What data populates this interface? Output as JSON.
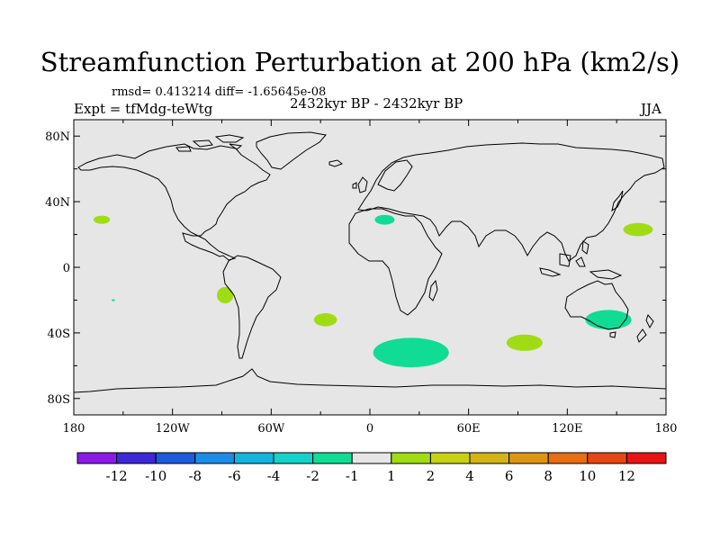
{
  "title": "Streamfunction Perturbation at 200 hPa (km2/s)",
  "stats": "rmsd= 0.413214 diff= -1.65645e-08",
  "experiment": "Expt = tfMdg-teWtg",
  "period": "2432kyr BP - 2432kyr BP",
  "season": "JJA",
  "colors": {
    "ocean_background": "#e6e6e6",
    "coastline": "#000000"
  },
  "axes": {
    "lat_labels": [
      "80N",
      "40N",
      "0",
      "40S",
      "80S"
    ],
    "lon_labels": [
      "180",
      "120W",
      "60W",
      "0",
      "60E",
      "120E",
      "180"
    ]
  },
  "colorbar": {
    "colors": [
      "#8a1ae6",
      "#3c28d6",
      "#1e5adc",
      "#1e8ce6",
      "#14b4dc",
      "#14d2c8",
      "#10dc96",
      "#e6e6e6",
      "#a0dc14",
      "#c8d214",
      "#d2b414",
      "#dc9614",
      "#e66e14",
      "#e64614",
      "#e61414"
    ],
    "labels": [
      "-12",
      "-10",
      "-8",
      "-6",
      "-4",
      "-2",
      "-1",
      "1",
      "2",
      "4",
      "6",
      "8",
      "10",
      "12"
    ]
  },
  "anomalies": [
    {
      "lon": -163,
      "lat": 29,
      "rlon": 5,
      "rlat": 2.5,
      "color": "#a0dc14"
    },
    {
      "lon": 9,
      "lat": 29,
      "rlon": 6,
      "rlat": 3,
      "color": "#10dc96"
    },
    {
      "lon": 163,
      "lat": 23,
      "rlon": 9,
      "rlat": 4,
      "color": "#a0dc14"
    },
    {
      "lon": -88,
      "lat": -17,
      "rlon": 5,
      "rlat": 5,
      "color": "#a0dc14"
    },
    {
      "lon": -156,
      "lat": -20,
      "rlon": 1,
      "rlat": 0.6,
      "color": "#10dc96"
    },
    {
      "lon": -27,
      "lat": -32,
      "rlon": 7,
      "rlat": 4,
      "color": "#a0dc14"
    },
    {
      "lon": 145,
      "lat": -32,
      "rlon": 14,
      "rlat": 6,
      "color": "#10dc96"
    },
    {
      "lon": 94,
      "lat": -46,
      "rlon": 11,
      "rlat": 5,
      "color": "#a0dc14"
    },
    {
      "lon": 25,
      "lat": -52,
      "rlon": 23,
      "rlat": 9,
      "color": "#10dc96"
    }
  ]
}
